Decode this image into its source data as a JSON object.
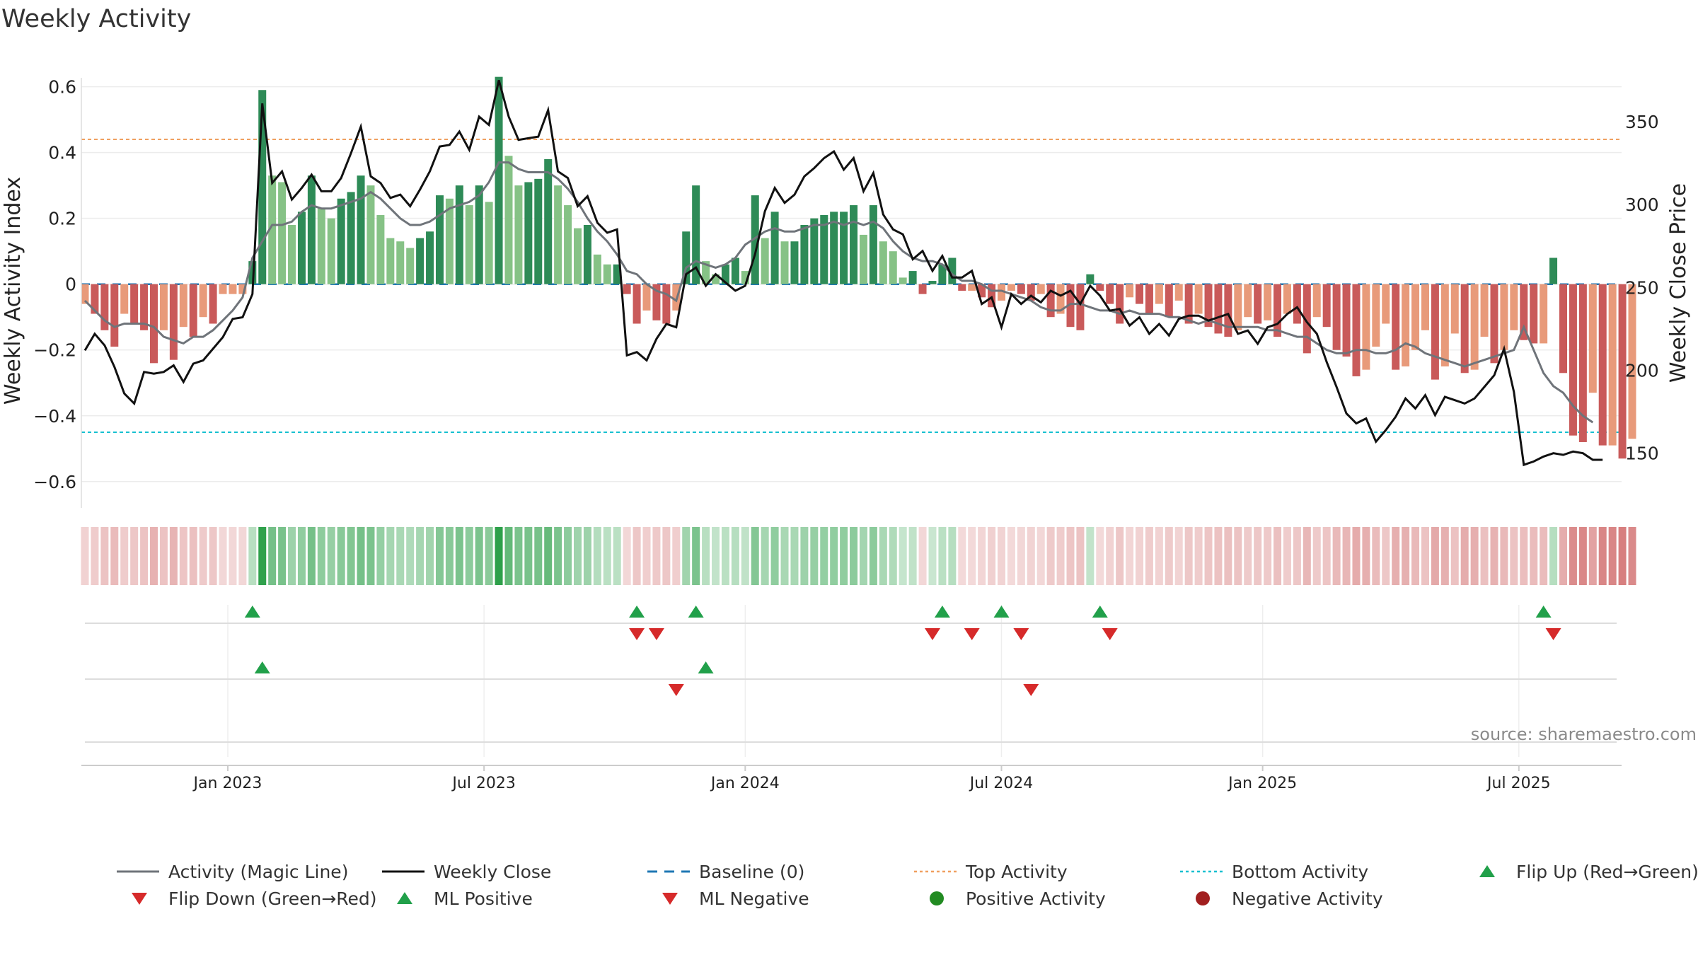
{
  "title": "Weekly Activity",
  "source": "source: sharemaestro.com",
  "colors": {
    "magic_line": "#6f747a",
    "close": "#111111",
    "baseline": "#1f77b4",
    "top": "#f0a060",
    "bottom": "#17c0d0",
    "up": "#21a04a",
    "down": "#d62a2a"
  },
  "chart_data": {
    "type": "bar",
    "title": "Weekly Activity",
    "ylabel": "Weekly Activity Index",
    "y2label": "Weekly Close Price",
    "ylim": [
      -0.68,
      0.64
    ],
    "y2lim": [
      117,
      379
    ],
    "yticks": [
      {
        "v": 0.6,
        "label": "0.6"
      },
      {
        "v": 0.4,
        "label": "0.4"
      },
      {
        "v": 0.2,
        "label": "0.2"
      },
      {
        "v": 0,
        "label": "0"
      },
      {
        "v": -0.2,
        "label": "−0.2"
      },
      {
        "v": -0.4,
        "label": "−0.4"
      },
      {
        "v": -0.6,
        "label": "−0.6"
      }
    ],
    "y2ticks": [
      {
        "v": 350,
        "label": "350"
      },
      {
        "v": 300,
        "label": "300"
      },
      {
        "v": 250,
        "label": "250"
      },
      {
        "v": 200,
        "label": "200"
      },
      {
        "v": 150,
        "label": "150"
      }
    ],
    "xticks": [
      {
        "week": 14.5,
        "label": "Jan 2023"
      },
      {
        "week": 40.5,
        "label": "Jul 2023"
      },
      {
        "week": 67,
        "label": "Jan 2024"
      },
      {
        "week": 93,
        "label": "Jul 2024"
      },
      {
        "week": 119.5,
        "label": "Jan 2025"
      },
      {
        "week": 145.5,
        "label": "Jul 2025"
      }
    ],
    "top_activity": 0.44,
    "bottom_activity": -0.45,
    "activity": [
      -0.06,
      -0.09,
      -0.14,
      -0.19,
      -0.09,
      -0.12,
      -0.14,
      -0.24,
      -0.14,
      -0.23,
      -0.13,
      -0.16,
      -0.1,
      -0.12,
      -0.03,
      -0.03,
      -0.03,
      0.07,
      0.59,
      0.33,
      0.31,
      0.18,
      0.22,
      0.33,
      0.23,
      0.2,
      0.26,
      0.28,
      0.33,
      0.3,
      0.21,
      0.14,
      0.13,
      0.11,
      0.14,
      0.16,
      0.27,
      0.26,
      0.3,
      0.24,
      0.3,
      0.25,
      0.63,
      0.39,
      0.3,
      0.31,
      0.32,
      0.38,
      0.3,
      0.24,
      0.17,
      0.18,
      0.09,
      0.06,
      0.06,
      -0.03,
      -0.12,
      -0.08,
      -0.11,
      -0.12,
      -0.08,
      0.16,
      0.3,
      0.07,
      0.03,
      0.06,
      0.08,
      0.04,
      0.27,
      0.14,
      0.22,
      0.13,
      0.13,
      0.18,
      0.2,
      0.21,
      0.22,
      0.22,
      0.24,
      0.15,
      0.24,
      0.13,
      0.1,
      0.02,
      0.04,
      -0.03,
      0.01,
      0.06,
      0.08,
      -0.02,
      -0.02,
      -0.04,
      -0.07,
      -0.05,
      -0.02,
      -0.03,
      -0.05,
      -0.03,
      -0.1,
      -0.09,
      -0.13,
      -0.14,
      0.03,
      -0.02,
      -0.06,
      -0.12,
      -0.04,
      -0.06,
      -0.09,
      -0.06,
      -0.1,
      -0.05,
      -0.12,
      -0.09,
      -0.13,
      -0.15,
      -0.16,
      -0.14,
      -0.1,
      -0.12,
      -0.11,
      -0.16,
      -0.09,
      -0.12,
      -0.21,
      -0.1,
      -0.13,
      -0.2,
      -0.22,
      -0.28,
      -0.26,
      -0.19,
      -0.12,
      -0.26,
      -0.25,
      -0.2,
      -0.14,
      -0.29,
      -0.25,
      -0.15,
      -0.27,
      -0.26,
      -0.16,
      -0.24,
      -0.2,
      -0.14,
      -0.17,
      -0.18,
      -0.18,
      0.08,
      -0.27,
      -0.46,
      -0.48,
      -0.33,
      -0.49,
      -0.49,
      -0.53,
      -0.47
    ],
    "magic_line": [
      -0.05,
      -0.08,
      -0.11,
      -0.13,
      -0.12,
      -0.12,
      -0.12,
      -0.13,
      -0.16,
      -0.17,
      -0.18,
      -0.16,
      -0.16,
      -0.14,
      -0.11,
      -0.08,
      -0.04,
      0.08,
      0.13,
      0.18,
      0.18,
      0.19,
      0.22,
      0.24,
      0.23,
      0.23,
      0.24,
      0.25,
      0.26,
      0.28,
      0.26,
      0.23,
      0.2,
      0.18,
      0.18,
      0.19,
      0.21,
      0.23,
      0.24,
      0.25,
      0.27,
      0.31,
      0.37,
      0.37,
      0.35,
      0.34,
      0.34,
      0.34,
      0.32,
      0.29,
      0.25,
      0.2,
      0.16,
      0.13,
      0.09,
      0.04,
      0.03,
      0.0,
      -0.02,
      -0.03,
      -0.05,
      0.05,
      0.07,
      0.06,
      0.05,
      0.06,
      0.08,
      0.12,
      0.14,
      0.16,
      0.17,
      0.16,
      0.16,
      0.17,
      0.18,
      0.18,
      0.19,
      0.18,
      0.19,
      0.18,
      0.19,
      0.17,
      0.13,
      0.1,
      0.08,
      0.07,
      0.07,
      0.06,
      0.03,
      0.01,
      0.01,
      0.0,
      -0.02,
      -0.02,
      -0.03,
      -0.04,
      -0.05,
      -0.07,
      -0.08,
      -0.08,
      -0.06,
      -0.06,
      -0.07,
      -0.08,
      -0.08,
      -0.09,
      -0.08,
      -0.09,
      -0.09,
      -0.09,
      -0.1,
      -0.1,
      -0.11,
      -0.12,
      -0.11,
      -0.12,
      -0.13,
      -0.13,
      -0.13,
      -0.13,
      -0.14,
      -0.14,
      -0.15,
      -0.16,
      -0.16,
      -0.18,
      -0.2,
      -0.21,
      -0.21,
      -0.2,
      -0.2,
      -0.21,
      -0.21,
      -0.2,
      -0.18,
      -0.19,
      -0.21,
      -0.22,
      -0.23,
      -0.24,
      -0.25,
      -0.24,
      -0.23,
      -0.22,
      -0.21,
      -0.2,
      -0.13,
      -0.2,
      -0.27,
      -0.31,
      -0.33,
      -0.37,
      -0.4,
      -0.42
    ],
    "close": [
      212,
      222,
      215,
      202,
      186,
      180,
      199,
      198,
      199,
      203,
      193,
      204,
      206,
      213,
      220,
      231,
      232,
      246,
      361,
      313,
      320,
      303,
      310,
      318,
      308,
      308,
      316,
      331,
      347,
      317,
      313,
      304,
      306,
      299,
      309,
      320,
      335,
      336,
      344,
      333,
      353,
      348,
      375,
      353,
      339,
      340,
      341,
      357,
      320,
      316,
      299,
      305,
      289,
      283,
      285,
      209,
      211,
      206,
      219,
      228,
      226,
      258,
      262,
      251,
      258,
      253,
      248,
      251,
      270,
      296,
      310,
      301,
      306,
      317,
      322,
      328,
      332,
      321,
      328,
      308,
      319,
      294,
      285,
      282,
      267,
      272,
      260,
      269,
      256,
      256,
      260,
      240,
      244,
      226,
      246,
      240,
      245,
      241,
      248,
      245,
      248,
      240,
      251,
      245,
      236,
      237,
      227,
      232,
      222,
      228,
      221,
      231,
      233,
      233,
      230,
      232,
      234,
      222,
      224,
      216,
      226,
      228,
      234,
      238,
      229,
      222,
      205,
      190,
      174,
      168,
      171,
      157,
      164,
      172,
      183,
      177,
      185,
      173,
      184,
      182,
      180,
      183,
      190,
      197,
      213,
      187,
      143,
      145,
      148,
      150,
      149,
      151,
      150,
      146,
      146
    ],
    "flip_up": [
      17,
      56,
      62,
      87,
      93,
      103,
      148
    ],
    "flip_down": [
      56,
      58,
      86,
      90,
      95,
      104,
      149
    ],
    "ml_positive": [
      18,
      63
    ],
    "ml_negative": [
      60,
      96
    ],
    "legend": [
      "Activity (Magic Line)",
      "Weekly Close",
      "Baseline (0)",
      "Top Activity",
      "Bottom Activity",
      "Flip Up (Red→Green)",
      "Flip Down (Green→Red)",
      "ML Positive",
      "ML Negative",
      "Positive Activity",
      "Negative Activity"
    ]
  }
}
